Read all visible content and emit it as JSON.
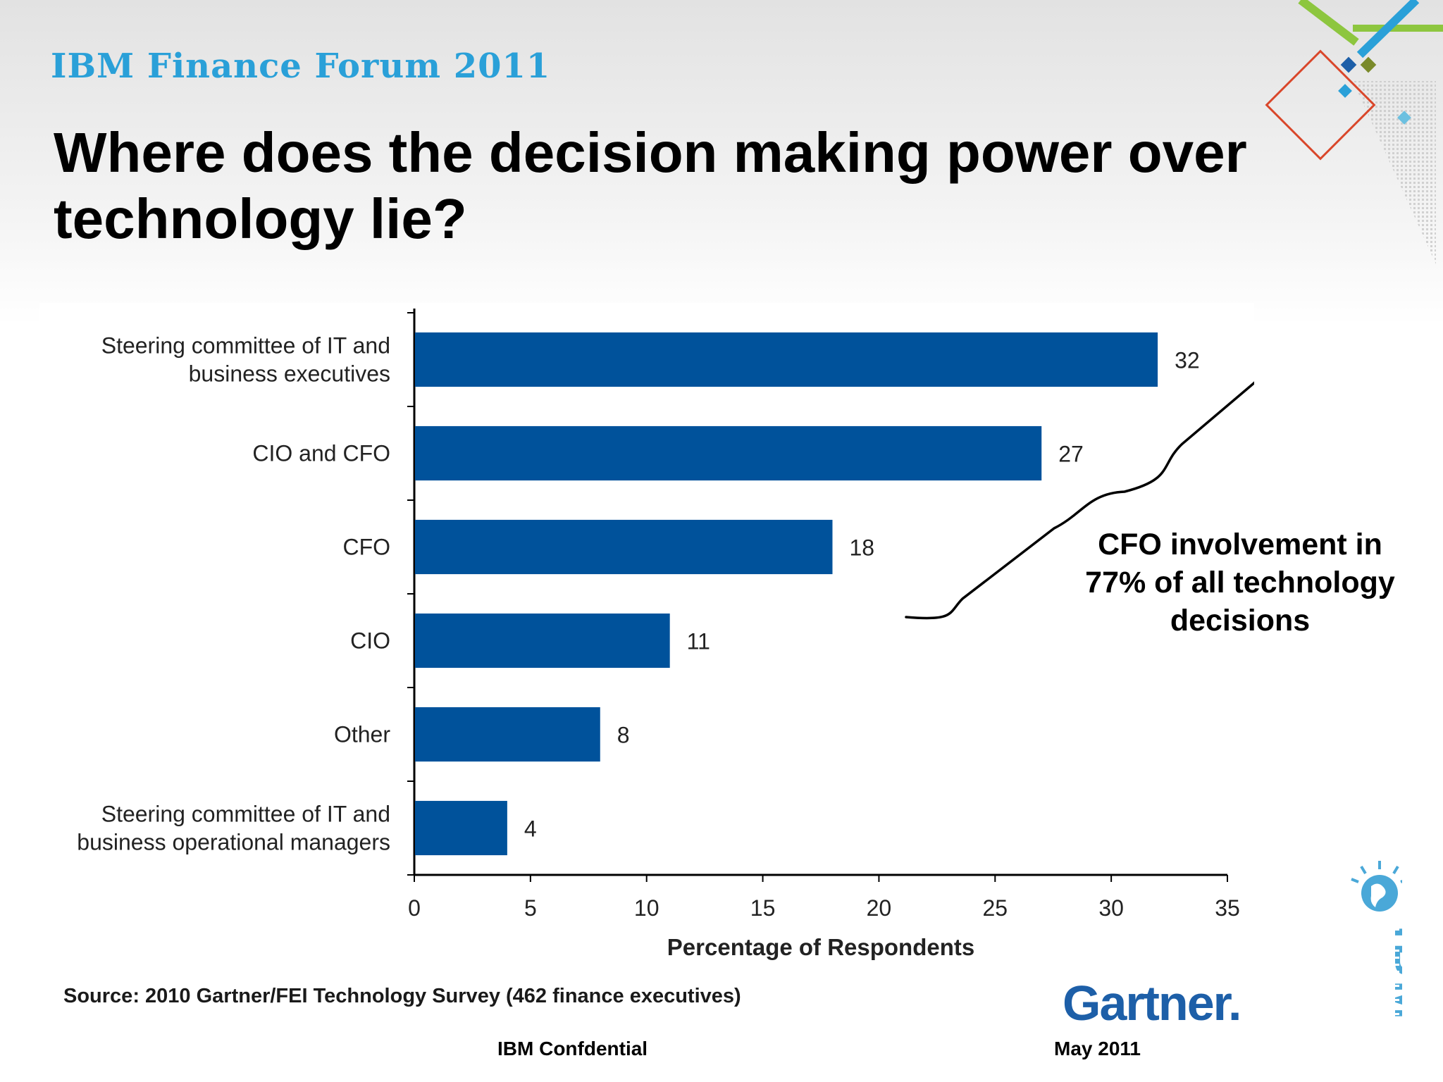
{
  "header": {
    "forum_title": "IBM Finance Forum 2011",
    "slide_title": "Where does the decision making power over technology lie?"
  },
  "chart_data": {
    "type": "bar",
    "orientation": "horizontal",
    "categories": [
      [
        "Steering committee of IT and",
        "business executives"
      ],
      [
        "CIO and CFO"
      ],
      [
        "CFO"
      ],
      [
        "CIO"
      ],
      [
        "Other"
      ],
      [
        "Steering committee of IT and",
        "business operational managers"
      ]
    ],
    "values": [
      32,
      27,
      18,
      11,
      8,
      4
    ],
    "data_labels": [
      "32",
      "27",
      "18",
      "11",
      "8",
      "4"
    ],
    "xlabel": "Percentage of Respondents",
    "xlim": [
      0,
      35
    ],
    "xticks": [
      0,
      5,
      10,
      15,
      20,
      25,
      30,
      35
    ],
    "grid": false,
    "bar_color": "#00529b"
  },
  "callout": {
    "text": "CFO involvement in 77% of all technology decisions"
  },
  "source_note": "Source: 2010 Gartner/FEI Technology Survey (462 finance executives)",
  "gartner_logo": "Gartner.",
  "footer": {
    "confidential": "IBM Confdential",
    "date": "May 2011"
  },
  "logos": {
    "ibm_text": "IBM",
    "ibm_color": "#4aa8d8"
  },
  "colors": {
    "forum_title": "#2aa0d8",
    "gartner": "#1d5fa8",
    "deco_green": "#8dc63f",
    "deco_blue": "#2aa0d8",
    "deco_red": "#d9472b"
  }
}
